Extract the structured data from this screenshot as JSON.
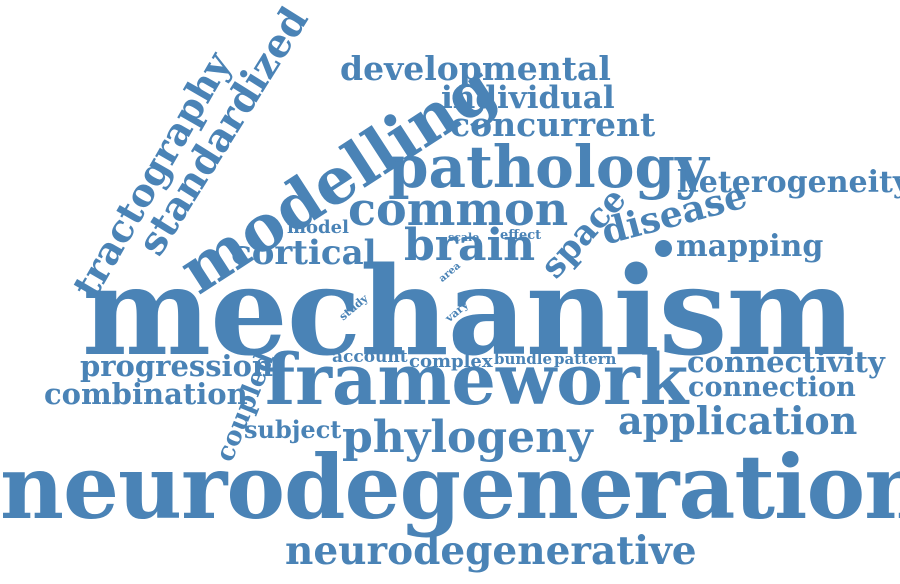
{
  "color": "#4a83b6",
  "words": [
    {
      "key": "mechanism",
      "text": "mechanism"
    },
    {
      "key": "neurodegeneration",
      "text": "neurodegeneration"
    },
    {
      "key": "framework",
      "text": "framework"
    },
    {
      "key": "pathology",
      "text": "pathology"
    },
    {
      "key": "modelling",
      "text": "modelling"
    },
    {
      "key": "phylogeny",
      "text": "phylogeny"
    },
    {
      "key": "neurodegenerative",
      "text": "neurodegenerative"
    },
    {
      "key": "common",
      "text": "common"
    },
    {
      "key": "brain",
      "text": "brain"
    },
    {
      "key": "application",
      "text": "application"
    },
    {
      "key": "standardized",
      "text": "standardized"
    },
    {
      "key": "tractography",
      "text": "tractography"
    },
    {
      "key": "developmental",
      "text": "developmental"
    },
    {
      "key": "concurrent",
      "text": "concurrent"
    },
    {
      "key": "individual",
      "text": "individual"
    },
    {
      "key": "heterogeneity",
      "text": "heterogeneity"
    },
    {
      "key": "disease",
      "text": "disease"
    },
    {
      "key": "space",
      "text": "space"
    },
    {
      "key": "cortical",
      "text": "cortical"
    },
    {
      "key": "mapping",
      "text": "mapping"
    },
    {
      "key": "connectivity",
      "text": "connectivity"
    },
    {
      "key": "connection",
      "text": "connection"
    },
    {
      "key": "progression",
      "text": "progression"
    },
    {
      "key": "combination",
      "text": "combination"
    },
    {
      "key": "coupled",
      "text": "coupled"
    },
    {
      "key": "subject",
      "text": "subject"
    },
    {
      "key": "account",
      "text": "account"
    },
    {
      "key": "complex",
      "text": "complex"
    },
    {
      "key": "bundle",
      "text": "bundle"
    },
    {
      "key": "pattern",
      "text": "pattern"
    },
    {
      "key": "model",
      "text": "model"
    },
    {
      "key": "scale",
      "text": "scale"
    },
    {
      "key": "effect",
      "text": "effect"
    },
    {
      "key": "area",
      "text": "area"
    },
    {
      "key": "study",
      "text": "study"
    },
    {
      "key": "vary",
      "text": "vary"
    }
  ]
}
